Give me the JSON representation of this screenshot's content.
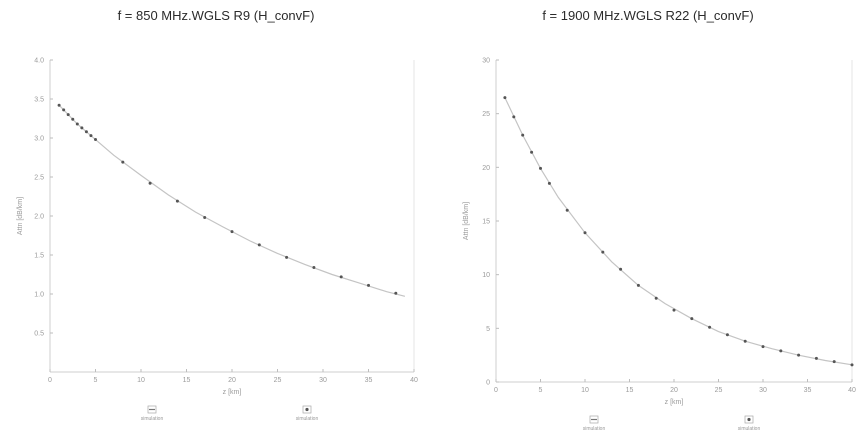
{
  "chart_data": [
    {
      "type": "line",
      "title": "f = 850 MHz.WGLS R9 (H_convF)",
      "xlabel": "z [km]",
      "ylabel": "Attn [dB/km]",
      "xlim": [
        0,
        40
      ],
      "ylim": [
        0,
        4.0
      ],
      "x_ticks": [
        "0",
        "5",
        "10",
        "15",
        "20",
        "25",
        "30",
        "35",
        "40"
      ],
      "y_ticks": [
        "0.5",
        "1.0",
        "1.5",
        "2.0",
        "2.5",
        "3.0",
        "3.5",
        "4.0"
      ],
      "legend_placement": "bottom",
      "series": [
        {
          "name": "simulation",
          "style": "solid",
          "x": [
            1,
            3,
            5,
            7,
            10,
            13,
            16,
            19,
            22,
            25,
            28,
            31,
            34,
            37,
            39
          ],
          "y": [
            3.42,
            3.18,
            2.98,
            2.78,
            2.52,
            2.27,
            2.05,
            1.86,
            1.68,
            1.52,
            1.38,
            1.25,
            1.14,
            1.03,
            0.97
          ]
        },
        {
          "name": "simulation",
          "style": "dots",
          "x": [
            1,
            1.5,
            2,
            2.5,
            3,
            3.5,
            4,
            4.5,
            5,
            8,
            11,
            14,
            17,
            20,
            23,
            26,
            29,
            32,
            35,
            38
          ],
          "y": [
            3.42,
            3.36,
            3.3,
            3.24,
            3.18,
            3.13,
            3.08,
            3.03,
            2.98,
            2.69,
            2.42,
            2.19,
            1.98,
            1.8,
            1.63,
            1.47,
            1.34,
            1.22,
            1.11,
            1.01
          ]
        }
      ]
    },
    {
      "type": "line",
      "title": "f = 1900 MHz.WGLS R22 (H_convF)",
      "xlabel": "z [km]",
      "ylabel": "Attn [dB/km]",
      "xlim": [
        0,
        40
      ],
      "ylim": [
        0,
        30
      ],
      "x_ticks": [
        "0",
        "5",
        "10",
        "15",
        "20",
        "25",
        "30",
        "35",
        "40"
      ],
      "y_ticks": [
        "0",
        "5",
        "10",
        "15",
        "20",
        "25",
        "30"
      ],
      "legend_placement": "bottom",
      "series": [
        {
          "name": "simulation",
          "style": "solid",
          "x": [
            1,
            3,
            5,
            7,
            10,
            13,
            16,
            19,
            22,
            25,
            28,
            31,
            34,
            37,
            40
          ],
          "y": [
            26.5,
            23.0,
            19.9,
            17.2,
            13.9,
            11.2,
            9.0,
            7.3,
            5.9,
            4.7,
            3.8,
            3.1,
            2.5,
            2.0,
            1.6
          ]
        },
        {
          "name": "simulation",
          "style": "dots",
          "x": [
            1,
            2,
            3,
            4,
            5,
            6,
            8,
            10,
            12,
            14,
            16,
            18,
            20,
            22,
            24,
            26,
            28,
            30,
            32,
            34,
            36,
            38,
            40
          ],
          "y": [
            26.5,
            24.7,
            23.0,
            21.4,
            19.9,
            18.5,
            16.0,
            13.9,
            12.1,
            10.5,
            9.0,
            7.8,
            6.7,
            5.9,
            5.1,
            4.4,
            3.8,
            3.3,
            2.9,
            2.5,
            2.2,
            1.9,
            1.6
          ]
        }
      ]
    }
  ]
}
